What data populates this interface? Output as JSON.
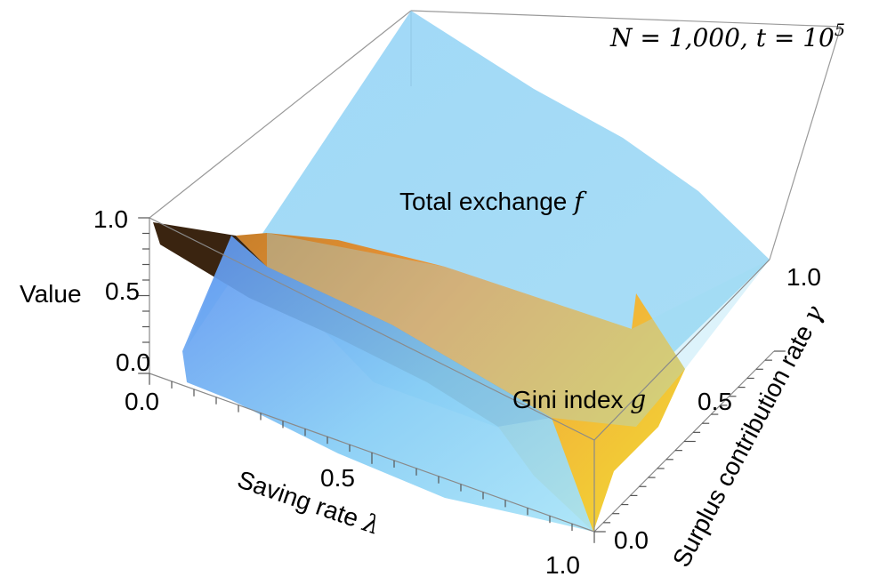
{
  "chart_data": {
    "type": "surface3d",
    "annotation": "N = 1,000,  t = 10^5",
    "annotation_parts": {
      "n_part": "N = 1,000,  t = 10",
      "exp": "5"
    },
    "x_axis": {
      "label": "Saving rate λ",
      "label_text": "Saving rate ",
      "symbol": "λ",
      "range": [
        0,
        1
      ],
      "ticks": [
        "0.0",
        "0.5",
        "1.0"
      ]
    },
    "y_axis": {
      "label": "Surplus contribution rate γ",
      "label_text": "Surplus contribution rate ",
      "symbol": "γ",
      "range": [
        0,
        1
      ],
      "ticks": [
        "0.0",
        "0.5",
        "1.0"
      ]
    },
    "z_axis": {
      "label": "Value",
      "range": [
        0,
        1
      ],
      "ticks": [
        "0.0",
        "0.5",
        "1.0"
      ]
    },
    "series": [
      {
        "name": "Total exchange f",
        "label_text": "Total exchange ",
        "symbol": "f",
        "color": "#8fd3f4",
        "lambda": [
          0,
          0.5,
          1
        ],
        "gamma": [
          0,
          0.5,
          1
        ],
        "values": [
          [
            0.1,
            0.0,
            0.0
          ],
          [
            0.5,
            0.8,
            0.7
          ],
          [
            0.6,
            1.0,
            0.4
          ]
        ]
      },
      {
        "name": "Gini index g",
        "label_text": "Gini index ",
        "symbol": "g",
        "color": "#f0a030",
        "lambda": [
          0,
          0.5,
          1
        ],
        "gamma": [
          0,
          0.5,
          1
        ],
        "values": [
          [
            0.8,
            0.5,
            0.0
          ],
          [
            0.8,
            0.5,
            0.2
          ],
          [
            0.8,
            0.6,
            0.6
          ]
        ]
      }
    ],
    "grid": false,
    "box": true
  }
}
